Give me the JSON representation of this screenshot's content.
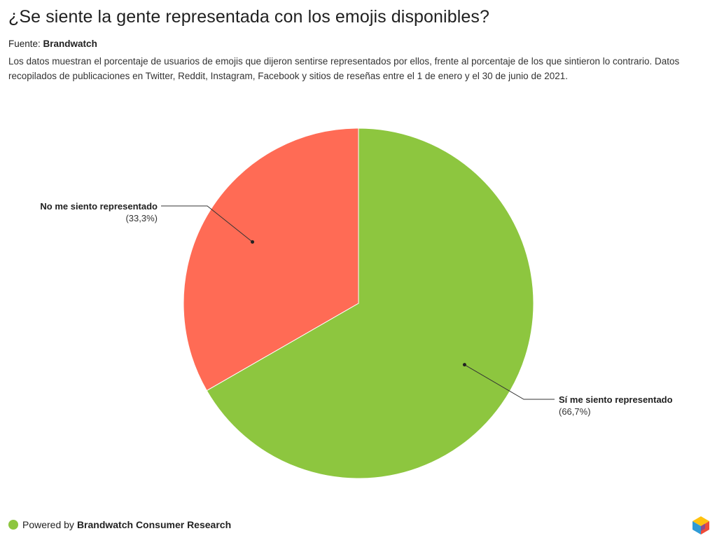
{
  "header": {
    "title": "¿Se siente la gente representada con los emojis disponibles?",
    "source_prefix": "Fuente:",
    "source_name": "Brandwatch",
    "description": "Los datos muestran el porcentaje de usuarios de emojis que dijeron sentirse representados por ellos, frente al porcentaje de los que sintieron lo contrario. Datos recopilados de publicaciones en Twitter, Reddit, Instagram, Facebook y sitios de reseñas entre el 1 de enero y el 30 de junio de 2021."
  },
  "chart_data": {
    "type": "pie",
    "title": "¿Se siente la gente representada con los emojis disponibles?",
    "slices": [
      {
        "name": "Sí me siento representado",
        "value": 66.7,
        "label": "(66,7%)",
        "color": "#8dc63f"
      },
      {
        "name": "No me siento representado",
        "value": 33.3,
        "label": "(33,3%)",
        "color": "#ff6b55"
      }
    ],
    "start_angle": "12 o'clock",
    "direction": "clockwise",
    "legend": "none (labels beside slices)"
  },
  "footer": {
    "powered_prefix": "Powered by",
    "powered_name": "Brandwatch Consumer Research",
    "dot_color": "#8dc63f",
    "logo_icon": "brandwatch-cube-icon"
  }
}
